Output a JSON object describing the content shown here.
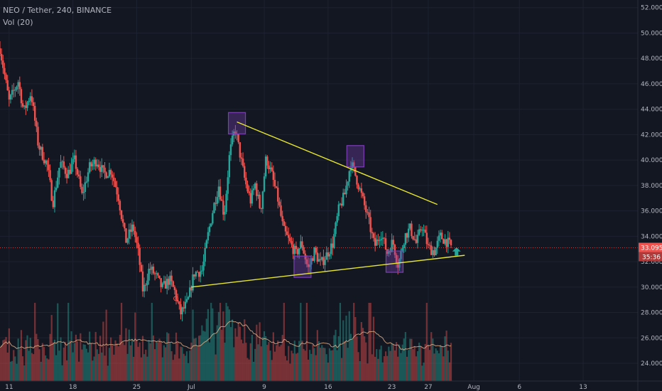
{
  "legend": {
    "symbol": "NEO / Tether, 240, BINANCE",
    "indicator": "Vol (20)"
  },
  "price_badges": {
    "last_price": "33.095",
    "countdown": "35:36"
  },
  "colors": {
    "background": "#131722",
    "up": "#26a69a",
    "down": "#ef5350",
    "trendline": "#e6e62e",
    "highlight": "#7b3fb4",
    "grid": "#1e2230",
    "last_price_line": "#ef5350",
    "arrow": "#26a69a"
  },
  "chart_data": {
    "type": "candlestick",
    "symbol": "NEO / Tether",
    "interval": "240",
    "exchange": "BINANCE",
    "y_axis": {
      "ticks": [
        "24.000",
        "26.000",
        "28.000",
        "30.000",
        "32.000",
        "34.000",
        "36.000",
        "38.000",
        "40.000",
        "42.000",
        "44.000",
        "46.000",
        "48.000",
        "50.000",
        "52.000"
      ],
      "range": [
        22.6,
        52.6
      ]
    },
    "x_axis": {
      "ticks": [
        {
          "label": "11",
          "day": 11
        },
        {
          "label": "18",
          "day": 18
        },
        {
          "label": "25",
          "day": 25
        },
        {
          "label": "Jul",
          "day": 31
        },
        {
          "label": "9",
          "day": 39
        },
        {
          "label": "16",
          "day": 46
        },
        {
          "label": "23",
          "day": 53
        },
        {
          "label": "27",
          "day": 57
        },
        {
          "label": "Aug",
          "day": 62
        },
        {
          "label": "6",
          "day": 67
        },
        {
          "label": "13",
          "day": 74
        }
      ],
      "range": [
        10.0,
        80.0
      ]
    },
    "close_path": [
      [
        10.0,
        48.8
      ],
      [
        11.0,
        44.6
      ],
      [
        12.0,
        46.2
      ],
      [
        12.6,
        43.8
      ],
      [
        13.4,
        45.3
      ],
      [
        14.2,
        41.2
      ],
      [
        15.2,
        39.5
      ],
      [
        15.8,
        36.6
      ],
      [
        16.6,
        39.8
      ],
      [
        17.4,
        38.9
      ],
      [
        18.2,
        40.0
      ],
      [
        19.0,
        37.2
      ],
      [
        19.8,
        39.4
      ],
      [
        20.6,
        40.0
      ],
      [
        21.4,
        38.9
      ],
      [
        22.2,
        39.2
      ],
      [
        23.0,
        37.1
      ],
      [
        23.8,
        33.6
      ],
      [
        24.6,
        34.8
      ],
      [
        25.2,
        32.6
      ],
      [
        25.7,
        29.6
      ],
      [
        26.4,
        31.5
      ],
      [
        27.1,
        30.9
      ],
      [
        27.8,
        29.9
      ],
      [
        28.6,
        30.6
      ],
      [
        29.2,
        29.6
      ],
      [
        29.8,
        27.9
      ],
      [
        30.6,
        28.8
      ],
      [
        31.3,
        31.1
      ],
      [
        32.2,
        31.3
      ],
      [
        32.8,
        34.0
      ],
      [
        33.4,
        36.2
      ],
      [
        34.0,
        38.0
      ],
      [
        34.6,
        35.6
      ],
      [
        35.2,
        40.5
      ],
      [
        35.8,
        42.5
      ],
      [
        36.3,
        40.6
      ],
      [
        36.9,
        38.3
      ],
      [
        37.5,
        36.8
      ],
      [
        38.0,
        38.1
      ],
      [
        38.6,
        36.0
      ],
      [
        39.2,
        40.2
      ],
      [
        39.8,
        38.9
      ],
      [
        40.5,
        36.9
      ],
      [
        41.1,
        34.5
      ],
      [
        41.8,
        33.5
      ],
      [
        42.5,
        32.6
      ],
      [
        43.1,
        33.5
      ],
      [
        43.8,
        31.4
      ],
      [
        44.5,
        32.8
      ],
      [
        45.2,
        31.8
      ],
      [
        45.8,
        32.5
      ],
      [
        46.5,
        33.4
      ],
      [
        47.2,
        36.2
      ],
      [
        47.8,
        37.2
      ],
      [
        48.5,
        39.8
      ],
      [
        49.1,
        38.6
      ],
      [
        49.8,
        36.9
      ],
      [
        50.4,
        35.4
      ],
      [
        51.1,
        33.2
      ],
      [
        51.8,
        34.3
      ],
      [
        52.5,
        32.7
      ],
      [
        53.1,
        33.6
      ],
      [
        53.7,
        31.7
      ],
      [
        54.4,
        34.0
      ],
      [
        55.0,
        34.6
      ],
      [
        55.7,
        33.4
      ],
      [
        56.3,
        34.9
      ],
      [
        57.0,
        33.1
      ],
      [
        57.7,
        32.8
      ],
      [
        58.3,
        34.0
      ],
      [
        59.0,
        33.6
      ],
      [
        59.6,
        33.1
      ]
    ],
    "volume_note": "Vol (20) histogram with moving-average line",
    "annotations": {
      "descending_trendline": {
        "from": [
          36.0,
          43.0
        ],
        "to": [
          58.0,
          36.5
        ]
      },
      "ascending_trendline": {
        "from": [
          31.0,
          30.0
        ],
        "to": [
          61.0,
          32.5
        ]
      },
      "highlighted_points": [
        {
          "x": 36.0,
          "y": 42.9
        },
        {
          "x": 49.0,
          "y": 40.3
        },
        {
          "x": 43.2,
          "y": 31.6
        },
        {
          "x": 53.3,
          "y": 32.0
        }
      ],
      "low_marker": {
        "x": 29.3,
        "y": 29.1
      },
      "up_arrow": {
        "x": 60.1,
        "y": 32.8
      }
    },
    "last_price": 33.095
  }
}
